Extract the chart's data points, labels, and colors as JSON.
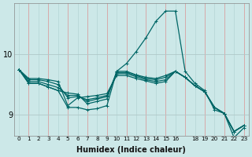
{
  "xlabel": "Humidex (Indice chaleur)",
  "bg_color": "#cce8e8",
  "line_color": "#006666",
  "xlim": [
    -0.5,
    23.5
  ],
  "ylim": [
    8.65,
    10.85
  ],
  "yticks": [
    9,
    10
  ],
  "xtick_labels": [
    "0",
    "1",
    "2",
    "3",
    "4",
    "5",
    "6",
    "7",
    "8",
    "9",
    "10",
    "11",
    "12",
    "13",
    "14",
    "15",
    "16",
    "18",
    "19",
    "20",
    "21",
    "22",
    "23"
  ],
  "xtick_positions": [
    0,
    1,
    2,
    3,
    4,
    5,
    6,
    7,
    8,
    9,
    10,
    11,
    12,
    13,
    14,
    15,
    16,
    18,
    19,
    20,
    21,
    22,
    23
  ],
  "series": [
    [
      9.75,
      9.6,
      9.6,
      9.58,
      9.55,
      9.15,
      9.28,
      9.3,
      9.32,
      9.35,
      9.65,
      9.65,
      9.6,
      9.56,
      9.52,
      9.55,
      9.72,
      9.62,
      9.48,
      9.38,
      9.12,
      9.02,
      8.72,
      8.82
    ],
    [
      9.75,
      9.58,
      9.58,
      9.55,
      9.5,
      9.28,
      9.3,
      9.25,
      9.28,
      9.32,
      9.68,
      9.68,
      9.63,
      9.58,
      9.55,
      9.58,
      9.72,
      9.62,
      9.48,
      9.38,
      9.12,
      9.02,
      8.72,
      8.82
    ],
    [
      9.75,
      9.55,
      9.55,
      9.5,
      9.45,
      9.32,
      9.32,
      9.22,
      9.26,
      9.3,
      9.7,
      9.7,
      9.65,
      9.6,
      9.58,
      9.62,
      9.72,
      9.62,
      9.48,
      9.38,
      9.12,
      9.02,
      8.72,
      8.82
    ],
    [
      9.75,
      9.52,
      9.52,
      9.46,
      9.4,
      9.36,
      9.34,
      9.18,
      9.22,
      9.26,
      9.72,
      9.72,
      9.66,
      9.62,
      9.6,
      9.65,
      9.72,
      9.62,
      9.48,
      9.38,
      9.12,
      9.02,
      8.72,
      8.82
    ]
  ],
  "peak_series": [
    9.75,
    9.52,
    9.52,
    9.46,
    9.4,
    9.12,
    9.12,
    9.08,
    9.1,
    9.15,
    9.72,
    9.85,
    10.05,
    10.28,
    10.55,
    10.72,
    10.72,
    9.72,
    9.52,
    9.4,
    9.08,
    9.02,
    8.62,
    8.78
  ],
  "vgrid_all": [
    0,
    1,
    2,
    3,
    4,
    5,
    6,
    7,
    8,
    9,
    10,
    11,
    12,
    13,
    14,
    15,
    16,
    17,
    18,
    19,
    20,
    21,
    22,
    23
  ],
  "vgrid_red": [
    1,
    3,
    5,
    7,
    9,
    11,
    13,
    15,
    17,
    19,
    21,
    23
  ]
}
